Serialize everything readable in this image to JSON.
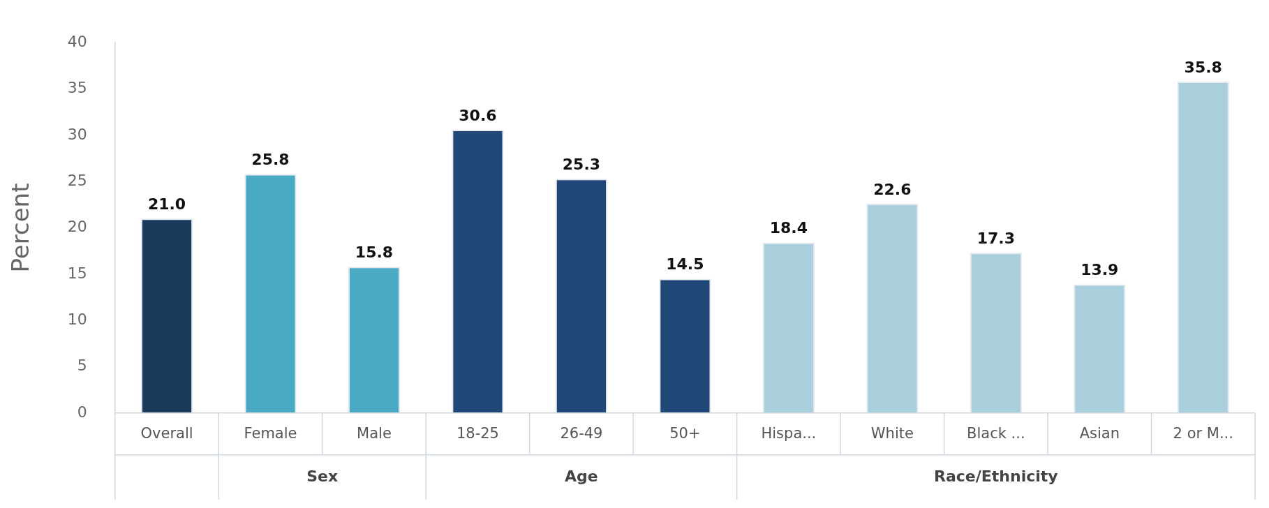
{
  "chart_data": {
    "type": "bar",
    "ylabel": "Percent",
    "categories": [
      "Overall",
      "Female",
      "Male",
      "18-25",
      "26-49",
      "50+",
      "Hispa...",
      "White",
      "Black ...",
      "Asian",
      "2 or M..."
    ],
    "values": [
      21.0,
      25.8,
      15.8,
      30.6,
      25.3,
      14.5,
      18.4,
      22.6,
      17.3,
      13.9,
      35.8
    ],
    "colors": [
      "#1a3a5c",
      "#4aaac4",
      "#4aaac4",
      "#1f4878",
      "#1f4878",
      "#1f4878",
      "#a9cfdd",
      "#a9cfdd",
      "#a9cfdd",
      "#a9cfdd",
      "#a9cfdd"
    ],
    "annotations": [
      "Sex",
      "Age",
      "Race/Ethnicity"
    ],
    "ylim": [
      0,
      40
    ],
    "yticks": [
      0,
      5,
      10,
      15,
      20,
      25,
      30,
      35,
      40
    ],
    "grid": false,
    "value_labels": [
      "21.0",
      "25.8",
      "15.8",
      "30.6",
      "25.3",
      "14.5",
      "18.4",
      "22.6",
      "17.3",
      "13.9",
      "35.8"
    ]
  }
}
